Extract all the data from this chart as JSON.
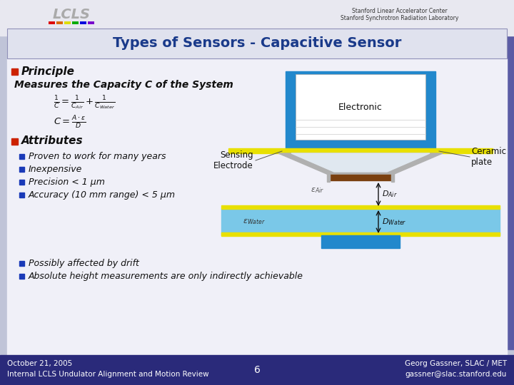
{
  "title": "Types of Sensors - Capacitive Sensor",
  "title_color": "#1a3a8a",
  "slide_bg": "#b8bcd0",
  "content_bg": "#f0f0f8",
  "title_bar_bg": "#e0e2ee",
  "principle_text": "Principle",
  "subtitle_text": "Measures the Capacity C of the System",
  "attributes_text": "Attributes",
  "bullet_items": [
    "Proven to work for many years",
    "Inexpensive",
    "Precision < 1 μm",
    "Accuracy (10 mm range) < 5 μm"
  ],
  "bottom_bullets": [
    "Possibly affected by drift",
    "Absolute height measurements are only indirectly achievable"
  ],
  "footer_left1": "October 21, 2005",
  "footer_left2": "Internal LCLS Undulator Alignment and Motion Review",
  "footer_center": "6",
  "footer_right1": "Georg Gassner, SLAC / MET",
  "footer_right2": "gassner@slac.stanford.edu",
  "red_bullet_color": "#cc2200",
  "blue_bullet_color": "#1a3ab8",
  "footer_bg": "#2a2a7a",
  "formula1": "$\\frac{1}{C} = \\frac{1}{C_{Air}} + \\frac{1}{C_{Water}}$",
  "formula2": "$C = \\frac{A \\cdot \\varepsilon}{D}$",
  "diagram_label_electronic": "Electronic",
  "diagram_label_sensing": "Sensing\nElectrode",
  "diagram_label_ceramic": "Ceramic\nplate",
  "diagram_label_eps_air": "$\\varepsilon_{Air}$",
  "diagram_label_eps_water": "$\\varepsilon_{Water}$",
  "diagram_label_d_air": "$D_{Air}$",
  "diagram_label_d_water": "$D_{Water}$",
  "stanford_line1": "Stanford Linear Accelerator Center",
  "stanford_line2": "Stanford Synchrotron Radiation Laboratory"
}
